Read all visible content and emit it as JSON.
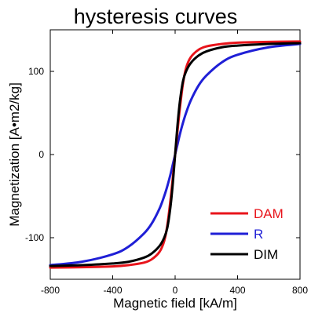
{
  "chart_data": {
    "type": "line",
    "title": "hysteresis curves",
    "xlabel": "Magnetic field [kA/m]",
    "ylabel": "Magnetization [A•m2/kg]",
    "xlim": [
      -800,
      800
    ],
    "ylim": [
      -150,
      150
    ],
    "x_ticks": [
      "-800",
      "-400",
      "0",
      "400",
      "800"
    ],
    "y_ticks": [
      "100",
      "0",
      "-100"
    ],
    "grid": false,
    "legend_position": "bottom-right",
    "series": [
      {
        "name": "DAM",
        "color": "#e8141b",
        "x": [
          -800,
          -600,
          -400,
          -300,
          -200,
          -150,
          -100,
          -70,
          -50,
          -30,
          -15,
          0,
          15,
          30,
          50,
          70,
          100,
          150,
          200,
          300,
          400,
          600,
          800
        ],
        "y": [
          -136,
          -135.5,
          -134.5,
          -133,
          -130,
          -126,
          -117,
          -104,
          -85,
          -55,
          -28,
          0,
          28,
          55,
          85,
          104,
          117,
          126,
          130,
          133,
          134.5,
          135.5,
          136
        ]
      },
      {
        "name": "R",
        "color": "#1f1fd6",
        "x": [
          -800,
          -600,
          -400,
          -300,
          -200,
          -150,
          -100,
          -70,
          -50,
          -30,
          -15,
          0,
          15,
          30,
          50,
          70,
          100,
          150,
          200,
          300,
          400,
          600,
          800
        ],
        "y": [
          -133,
          -129,
          -120,
          -111,
          -95,
          -83,
          -65,
          -50,
          -38,
          -24,
          -12,
          0,
          12,
          24,
          38,
          50,
          65,
          83,
          95,
          111,
          120,
          129,
          133
        ]
      },
      {
        "name": "DIM",
        "color": "#000000",
        "x": [
          -800,
          -600,
          -400,
          -300,
          -200,
          -150,
          -100,
          -70,
          -50,
          -30,
          -15,
          0,
          15,
          30,
          50,
          70,
          100,
          150,
          200,
          300,
          400,
          600,
          800
        ],
        "y": [
          -134,
          -133,
          -131,
          -129,
          -124,
          -119,
          -110,
          -100,
          -88,
          -63,
          -35,
          0,
          35,
          63,
          88,
          100,
          110,
          119,
          124,
          129,
          131,
          133,
          134
        ]
      }
    ]
  }
}
